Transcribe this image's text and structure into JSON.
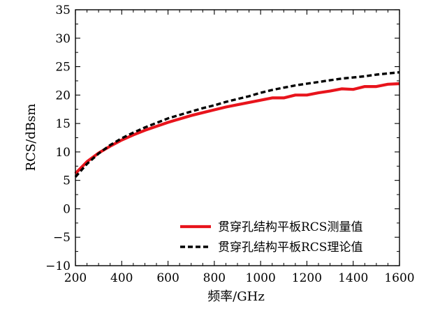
{
  "chart_data": {
    "type": "line",
    "xlabel": "频率/GHz",
    "ylabel": "RCS/dBsm",
    "xlim": [
      200,
      1600
    ],
    "ylim": [
      -10,
      35
    ],
    "x_ticks": [
      200,
      400,
      600,
      800,
      1000,
      1200,
      1400,
      1600
    ],
    "y_ticks": [
      -10,
      -5,
      0,
      5,
      10,
      15,
      20,
      25,
      30,
      35
    ],
    "y_tick_labels": [
      "−10",
      "−5",
      "0",
      "5",
      "10",
      "15",
      "20",
      "25",
      "30",
      "35"
    ],
    "grid": false,
    "legend_position": "bottom-right",
    "series": [
      {
        "name": "贯穿孔结构平板RCS测量值",
        "color": "#e8141c",
        "style": "solid",
        "x": [
          200,
          250,
          300,
          350,
          400,
          450,
          500,
          550,
          600,
          650,
          700,
          750,
          800,
          850,
          900,
          950,
          1000,
          1050,
          1100,
          1150,
          1200,
          1250,
          1300,
          1350,
          1400,
          1450,
          1500,
          1550,
          1600
        ],
        "y": [
          6.2,
          8.3,
          9.8,
          11.0,
          12.1,
          13.0,
          13.8,
          14.5,
          15.2,
          15.8,
          16.4,
          16.9,
          17.4,
          17.9,
          18.3,
          18.7,
          19.1,
          19.5,
          19.5,
          20.0,
          20.0,
          20.4,
          20.7,
          21.1,
          21.0,
          21.5,
          21.5,
          21.9,
          22.0
        ]
      },
      {
        "name": "贯穿孔结构平板RCS理论值",
        "color": "#000000",
        "style": "dashed",
        "x": [
          200,
          250,
          300,
          350,
          400,
          450,
          500,
          550,
          600,
          650,
          700,
          750,
          800,
          850,
          900,
          950,
          1000,
          1050,
          1100,
          1150,
          1200,
          1250,
          1300,
          1350,
          1400,
          1450,
          1500,
          1550,
          1600
        ],
        "y": [
          5.6,
          7.9,
          9.7,
          11.2,
          12.4,
          13.4,
          14.3,
          15.1,
          15.9,
          16.5,
          17.1,
          17.7,
          18.2,
          18.8,
          19.3,
          19.8,
          20.4,
          20.9,
          21.3,
          21.7,
          22.0,
          22.3,
          22.6,
          22.9,
          23.1,
          23.3,
          23.6,
          23.8,
          24.0
        ]
      }
    ]
  }
}
